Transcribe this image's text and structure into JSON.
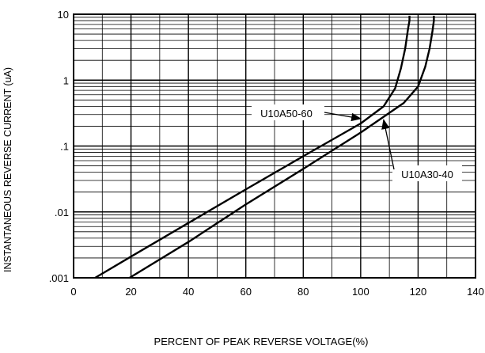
{
  "chart_data": {
    "type": "line",
    "title": "",
    "xlabel": "PERCENT OF PEAK REVERSE VOLTAGE(%)",
    "ylabel": "INSTANTANEOUS REVERSE CURRENT (uA)",
    "xlim": [
      0,
      140
    ],
    "ylim": [
      0.001,
      10
    ],
    "y_scale": "log",
    "grid": true,
    "x_ticks": [
      0,
      20,
      40,
      60,
      80,
      100,
      120,
      140
    ],
    "x_tick_labels": [
      "0",
      "20",
      "40",
      "60",
      "80",
      "100",
      "120",
      "140"
    ],
    "y_ticks": [
      0.001,
      0.01,
      0.1,
      1,
      10
    ],
    "y_tick_labels": [
      ".001",
      ".01",
      ".1",
      "1",
      "10"
    ],
    "legend": "none",
    "series": [
      {
        "name": "U10A50-60",
        "x": [
          7.5,
          20,
          40,
          60,
          80,
          100,
          108,
          112,
          114,
          115.5,
          116.5,
          117,
          117
        ],
        "y": [
          0.001,
          0.0021,
          0.0068,
          0.022,
          0.07,
          0.22,
          0.4,
          0.75,
          1.5,
          3,
          6,
          8,
          9.5
        ]
      },
      {
        "name": "U10A30-40",
        "x": [
          19.5,
          40,
          60,
          80,
          100,
          115,
          120,
          122.5,
          124,
          125,
          125.5,
          125.5
        ],
        "y": [
          0.001,
          0.0035,
          0.013,
          0.045,
          0.16,
          0.45,
          0.8,
          1.6,
          3,
          5.5,
          8,
          9.5
        ]
      }
    ],
    "annotations": [
      {
        "text": "U10A50-60",
        "series": "U10A50-60"
      },
      {
        "text": "U10A30-40",
        "series": "U10A30-40"
      }
    ]
  }
}
